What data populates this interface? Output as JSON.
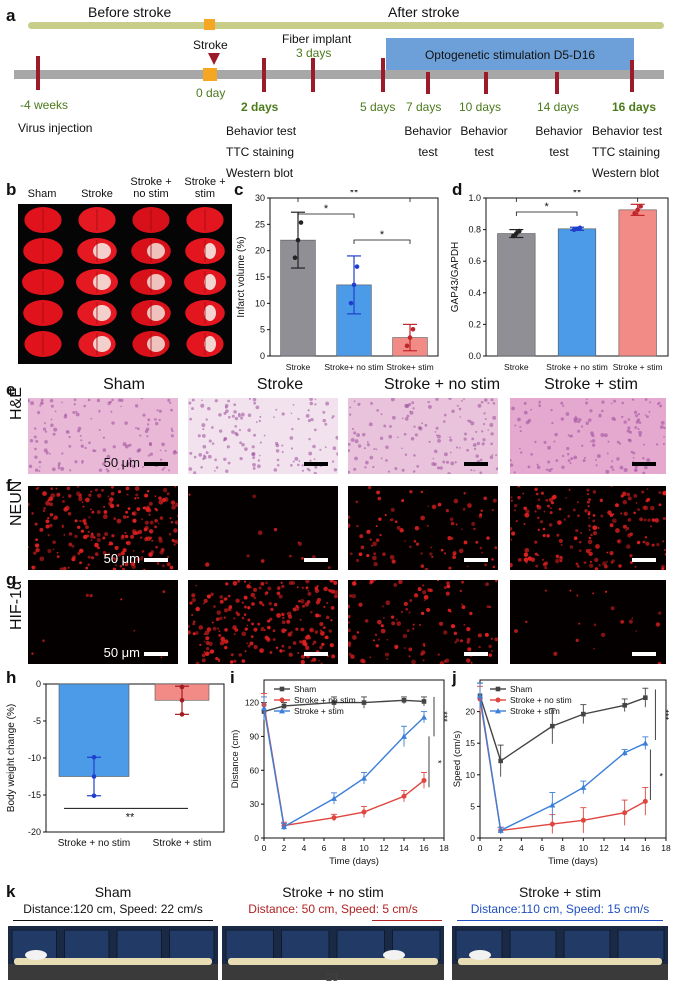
{
  "panels": {
    "a": "a",
    "b": "b",
    "c": "c",
    "d": "d",
    "e": "e",
    "f": "f",
    "g": "g",
    "h": "h",
    "i": "i",
    "j": "j",
    "k": "k"
  },
  "timeline": {
    "before": "Before stroke",
    "after": "After stroke",
    "stroke": "Stroke",
    "fiber": "Fiber implant",
    "fiber_days": "3 days",
    "opto": "Optogenetic stimulation D5-D16",
    "days": [
      {
        "label": "-4 weeks",
        "bold": false
      },
      {
        "label": "0 day",
        "bold": false
      },
      {
        "label": "2 days",
        "bold": true
      },
      {
        "label": "5 days",
        "bold": false
      },
      {
        "label": "7 days",
        "bold": false
      },
      {
        "label": "10 days",
        "bold": false
      },
      {
        "label": "14 days",
        "bold": false
      },
      {
        "label": "16 days",
        "bold": true
      }
    ],
    "virus": "Virus injection",
    "d2_lines": [
      "Behavior test",
      "TTC staining",
      "Western blot"
    ],
    "d7_lines": [
      "Behavior",
      "test"
    ],
    "d10_lines": [
      "Behavior",
      "test"
    ],
    "d14_lines": [
      "Behavior",
      "test"
    ],
    "d16_lines": [
      "Behavior test",
      "TTC staining",
      "Western blot"
    ]
  },
  "panel_b": {
    "cols": [
      "Sham",
      "Stroke",
      "Stroke + no stim",
      "Stroke + stim"
    ]
  },
  "panel_c": {
    "chart_data": {
      "type": "bar",
      "categories": [
        "Stroke",
        "Stroke+ no stim",
        "Stroke+ stim"
      ],
      "values": [
        22,
        13.5,
        3.5
      ],
      "errors": [
        5.3,
        5.5,
        2.5
      ],
      "ylabel": "Infarct volume (%)",
      "ylim": [
        0,
        30
      ],
      "yticks": [
        "0",
        "5",
        "10",
        "15",
        "20",
        "25",
        "30"
      ],
      "sig": [
        "*",
        "**",
        "*"
      ]
    }
  },
  "panel_d": {
    "chart_data": {
      "type": "bar",
      "categories": [
        "Stroke",
        "Stroke + no stim",
        "Stroke + stim"
      ],
      "values": [
        0.775,
        0.805,
        0.925
      ],
      "errors": [
        0.025,
        0.01,
        0.035
      ],
      "ylabel": "GAP43/GAPDH",
      "ylim": [
        0,
        1.0
      ],
      "yticks": [
        "0.0",
        "0.2",
        "0.4",
        "0.6",
        "0.8",
        "1.0"
      ],
      "sig": [
        "*",
        "**"
      ]
    }
  },
  "micro": {
    "cols": [
      "Sham",
      "Stroke",
      "Stroke + no stim",
      "Stroke + stim"
    ],
    "rows": [
      "H&E",
      "NEUN",
      "HIF-1α"
    ],
    "scale": "50 μm"
  },
  "panel_h": {
    "chart_data": {
      "type": "bar",
      "categories": [
        "Stroke + no stim",
        "Stroke + stim"
      ],
      "values": [
        -12.5,
        -2.2
      ],
      "errors": [
        2.6,
        1.9
      ],
      "ylabel": "Body weight change (%)",
      "ylim": [
        -20,
        0
      ],
      "yticks": [
        "0",
        "-5",
        "-10",
        "-15",
        "-20"
      ],
      "sig": "**"
    }
  },
  "panel_i": {
    "chart_data": {
      "type": "line",
      "x": [
        0,
        2,
        7,
        10,
        14,
        16
      ],
      "series": [
        {
          "name": "Sham",
          "values": [
            112,
            117,
            120,
            120,
            122,
            121
          ]
        },
        {
          "name": "Stroke + no stim",
          "values": [
            118,
            11,
            18,
            23,
            37,
            51
          ]
        },
        {
          "name": "Stroke + stim",
          "values": [
            115,
            10,
            35,
            53,
            90,
            107
          ]
        }
      ],
      "xlabel": "Time (days)",
      "ylabel": "Distance (cm)",
      "xlim": [
        0,
        18
      ],
      "ylim": [
        0,
        140
      ],
      "xticks": [
        "0",
        "2",
        "4",
        "6",
        "8",
        "10",
        "12",
        "14",
        "16",
        "18"
      ],
      "yticks": [
        "0",
        "30",
        "60",
        "90",
        "120"
      ],
      "sig": [
        "***",
        "*"
      ]
    }
  },
  "panel_j": {
    "chart_data": {
      "type": "line",
      "x": [
        0,
        2,
        7,
        10,
        14,
        16
      ],
      "series": [
        {
          "name": "Sham",
          "values": [
            22.5,
            12.2,
            17.7,
            19.6,
            21.0,
            22.2
          ]
        },
        {
          "name": "Stroke + no stim",
          "values": [
            22,
            1.2,
            2.2,
            2.8,
            4.0,
            5.8
          ]
        },
        {
          "name": "Stroke + stim",
          "values": [
            22.5,
            1.2,
            5.2,
            8.0,
            13.5,
            15.0
          ]
        }
      ],
      "xlabel": "Time (days)",
      "ylabel": "Speed (cm/s)",
      "xlim": [
        0,
        18
      ],
      "ylim": [
        0,
        25
      ],
      "xticks": [
        "0",
        "2",
        "4",
        "6",
        "8",
        "10",
        "12",
        "14",
        "16",
        "18"
      ],
      "yticks": [
        "0",
        "5",
        "10",
        "15",
        "20"
      ],
      "sig": [
        "***",
        "*"
      ]
    }
  },
  "panel_k": {
    "items": [
      {
        "title": "Sham",
        "sub": "Distance:120 cm, Speed: 22 cm/s",
        "color": "#111111"
      },
      {
        "title": "Stroke + no stim",
        "sub": "Distance: 50 cm, Speed: 5 cm/s",
        "color": "#b22222"
      },
      {
        "title": "Stroke + stim",
        "sub": "Distance:110 cm, Speed: 15 cm/s",
        "color": "#1f4fbf"
      }
    ]
  },
  "colors": {
    "gray": "#8f8f95",
    "blue": "#4c9be8",
    "red": "#f28b85",
    "olive": "#c8cd8a",
    "dark_red": "#9b1b2a",
    "opto": "#6da0d8"
  },
  "page_number": "23"
}
